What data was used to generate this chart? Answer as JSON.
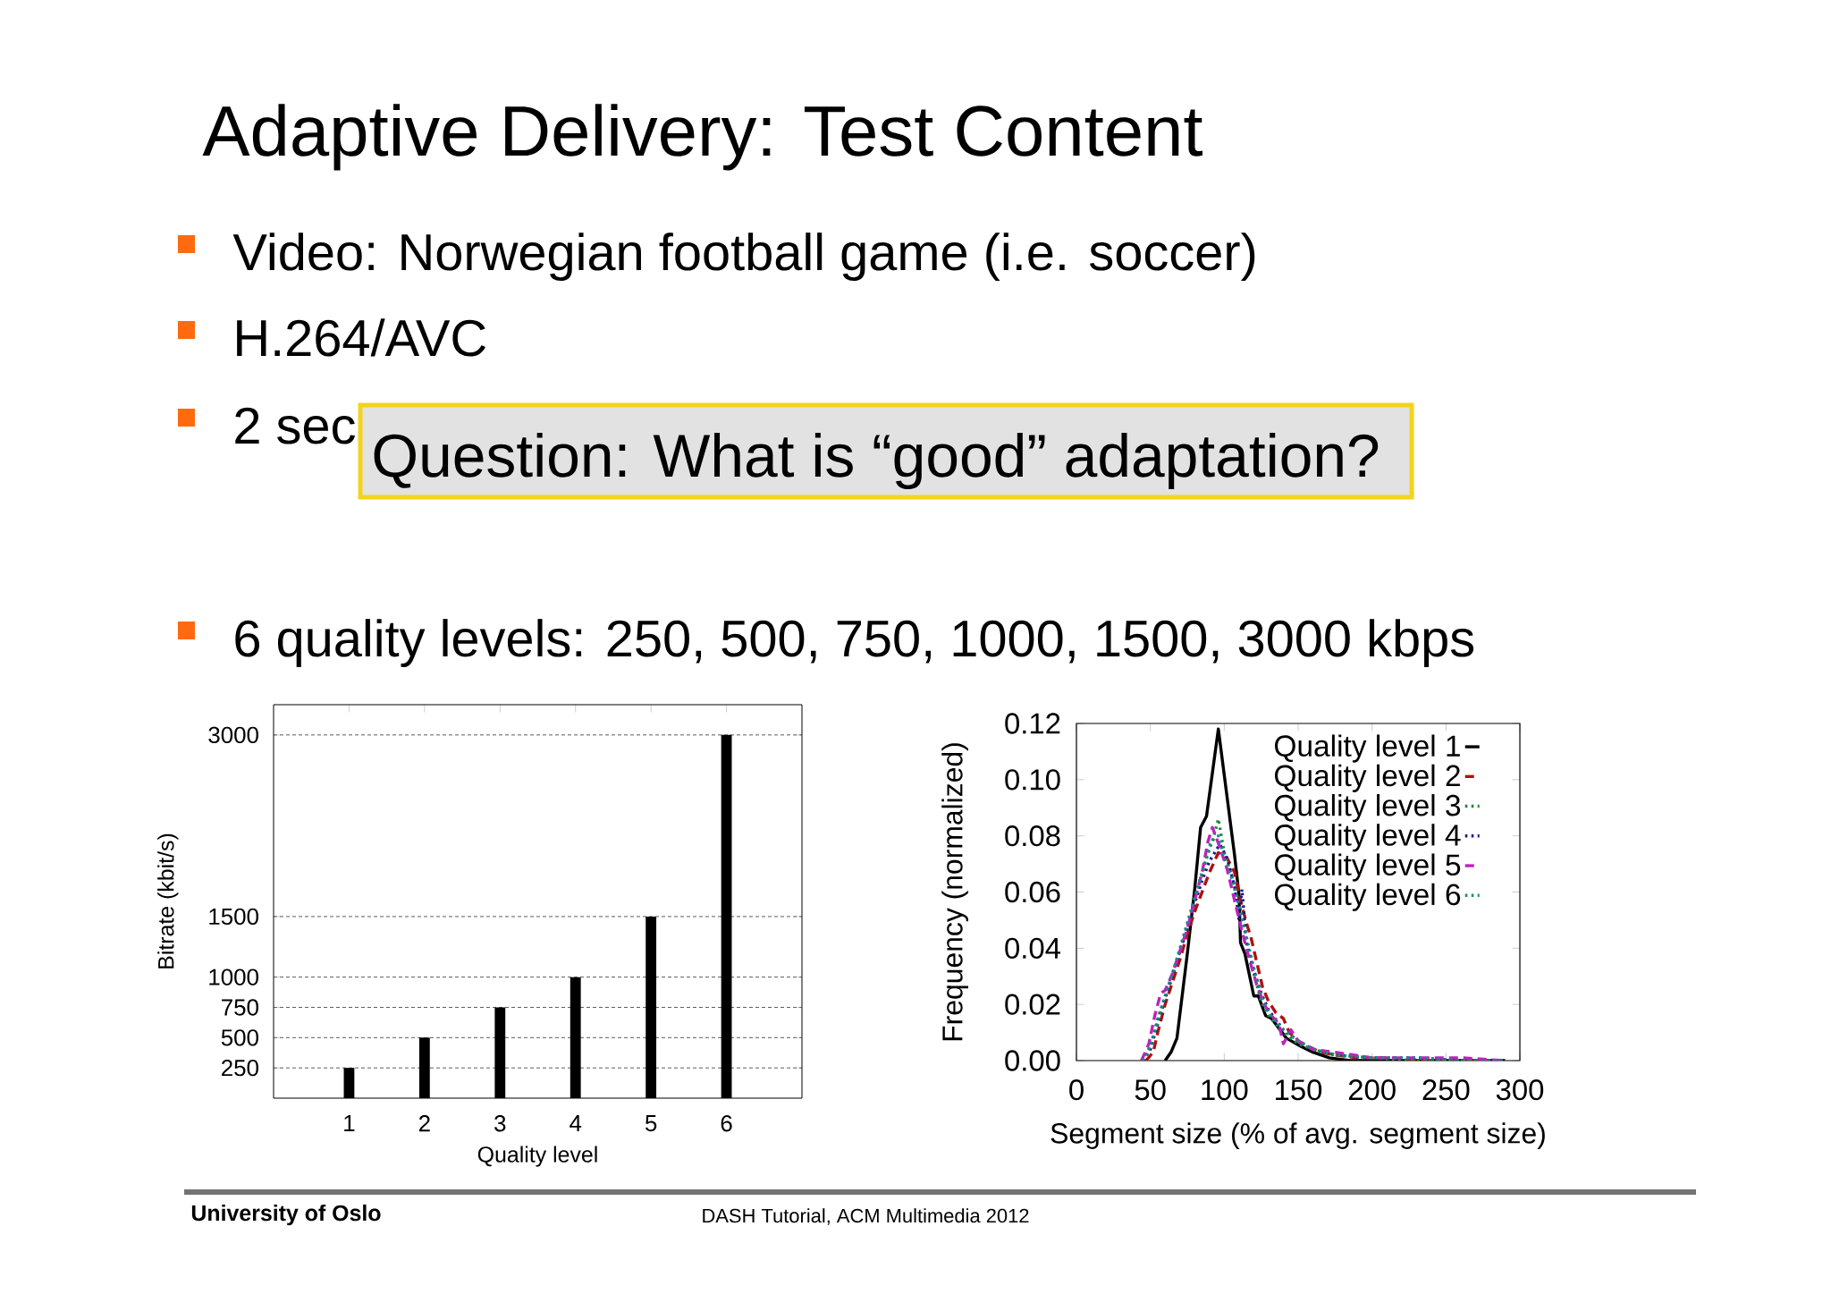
{
  "chart_data": [
    {
      "type": "other",
      "title": "Adaptive Delivery: Test Content",
      "annotations": [
        "Video: Norwegian football game (i.e. soccer)",
        "H.264/AVC",
        "2 sec",
        "Question: What is “good” adaptation?",
        "6 quality levels: 250, 500, 750, 1000, 1500, 3000 kbps",
        "University of Oslo",
        "DASH Tutorial, ACM Multimedia 2012"
      ]
    },
    {
      "type": "bar",
      "categories": [
        "1",
        "2",
        "3",
        "4",
        "5",
        "6"
      ],
      "values": [
        250,
        500,
        750,
        1000,
        1500,
        3000
      ],
      "color": "#000000",
      "xlabel": "Quality level",
      "ylabel": "Bitrate (kbit/s)",
      "ylim": [
        0,
        3250
      ],
      "yticks": [
        250,
        500,
        750,
        1000,
        1500,
        3000
      ],
      "grid": "y"
    },
    {
      "type": "line",
      "xlabel": "Segment size (% of avg. segment size)",
      "ylabel": "Frequency (normalized)",
      "xlim": [
        0,
        300
      ],
      "ylim": [
        0,
        0.12
      ],
      "xticks": [
        0,
        50,
        100,
        150,
        200,
        250,
        300
      ],
      "yticks": [
        {
          "value": 0,
          "label": "0.00"
        },
        0.02,
        0.04,
        0.06,
        0.08,
        {
          "value": 0.1,
          "label": "0.10"
        },
        0.12
      ],
      "legend": "top right",
      "series": [
        {
          "name": "Quality level 1",
          "color": "#000000",
          "line_style": "solid",
          "x": [
            60,
            64,
            68,
            75,
            80,
            84,
            88,
            96,
            107,
            110,
            111,
            114,
            120,
            123,
            128,
            132,
            142,
            152,
            160,
            171,
            185,
            250,
            290
          ],
          "values": [
            0,
            0.003,
            0.008,
            0.038,
            0.061,
            0.083,
            0.087,
            0.118,
            0.073,
            0.059,
            0.042,
            0.038,
            0.023,
            0.023,
            0.016,
            0.015,
            0.008,
            0.005,
            0.003,
            0.001,
            0,
            0,
            0
          ]
        },
        {
          "name": "Quality level 2",
          "color": "#b01010",
          "line_style": "dashed",
          "x": [
            47,
            52,
            55,
            60,
            65,
            70,
            75,
            80,
            85,
            90,
            96,
            102,
            107,
            111,
            115,
            118,
            122,
            126,
            130,
            135,
            140,
            144,
            150,
            157,
            165,
            175,
            190,
            210,
            240,
            270,
            290
          ],
          "values": [
            0,
            0.003,
            0.01,
            0.02,
            0.028,
            0.036,
            0.045,
            0.053,
            0.06,
            0.067,
            0.074,
            0.072,
            0.067,
            0.057,
            0.049,
            0.044,
            0.035,
            0.026,
            0.021,
            0.017,
            0.015,
            0.01,
            0.007,
            0.005,
            0.003,
            0.002,
            0.001,
            0.001,
            0,
            0,
            0
          ]
        },
        {
          "name": "Quality level 3",
          "color": "#1a8a3a",
          "line_style": "dotted",
          "x": [
            44,
            50,
            55,
            60,
            65,
            70,
            75,
            80,
            85,
            88,
            93,
            96,
            100,
            105,
            110,
            115,
            120,
            125,
            130,
            140,
            150,
            160,
            175,
            200,
            230,
            260,
            290
          ],
          "values": [
            0,
            0.005,
            0.015,
            0.023,
            0.031,
            0.039,
            0.048,
            0.057,
            0.066,
            0.072,
            0.08,
            0.086,
            0.074,
            0.066,
            0.056,
            0.043,
            0.031,
            0.021,
            0.016,
            0.01,
            0.006,
            0.004,
            0.002,
            0.001,
            0,
            0,
            0
          ]
        },
        {
          "name": "Quality level 4",
          "color": "#1a1a8a",
          "line_style": "dotted",
          "x": [
            45,
            50,
            55,
            60,
            65,
            70,
            75,
            80,
            85,
            90,
            97,
            102,
            107,
            110,
            112,
            115,
            120,
            125,
            130,
            140,
            150,
            160,
            175,
            200,
            230,
            260,
            290
          ],
          "values": [
            0,
            0.004,
            0.013,
            0.022,
            0.03,
            0.039,
            0.047,
            0.056,
            0.064,
            0.071,
            0.077,
            0.072,
            0.062,
            0.05,
            0.061,
            0.042,
            0.032,
            0.024,
            0.018,
            0.011,
            0.007,
            0.004,
            0.002,
            0.001,
            0.001,
            0,
            0
          ]
        },
        {
          "name": "Quality level 5",
          "color": "#c020c0",
          "line_style": "dashed",
          "x": [
            44,
            49,
            53,
            57,
            60,
            65,
            70,
            75,
            80,
            85,
            89,
            92,
            97,
            102,
            107,
            112,
            117,
            122,
            127,
            132,
            137,
            140,
            145,
            150,
            160,
            175,
            200,
            230,
            260,
            290
          ],
          "values": [
            0,
            0.006,
            0.016,
            0.024,
            0.025,
            0.031,
            0.039,
            0.047,
            0.057,
            0.067,
            0.078,
            0.083,
            0.076,
            0.068,
            0.057,
            0.046,
            0.036,
            0.027,
            0.02,
            0.016,
            0.013,
            0.006,
            0.011,
            0.007,
            0.004,
            0.003,
            0.001,
            0.001,
            0.001,
            0
          ]
        },
        {
          "name": "Quality level 6",
          "color": "#1a8a8a",
          "line_style": "dotted",
          "x": [
            45,
            50,
            55,
            60,
            65,
            70,
            75,
            80,
            85,
            91,
            96,
            100,
            105,
            110,
            115,
            120,
            125,
            130,
            140,
            150,
            160,
            175,
            200,
            230,
            260,
            290
          ],
          "values": [
            0,
            0.005,
            0.014,
            0.023,
            0.031,
            0.04,
            0.049,
            0.058,
            0.067,
            0.078,
            0.08,
            0.072,
            0.065,
            0.055,
            0.044,
            0.033,
            0.023,
            0.017,
            0.011,
            0.007,
            0.004,
            0.002,
            0.001,
            0.001,
            0,
            0
          ]
        }
      ]
    }
  ]
}
